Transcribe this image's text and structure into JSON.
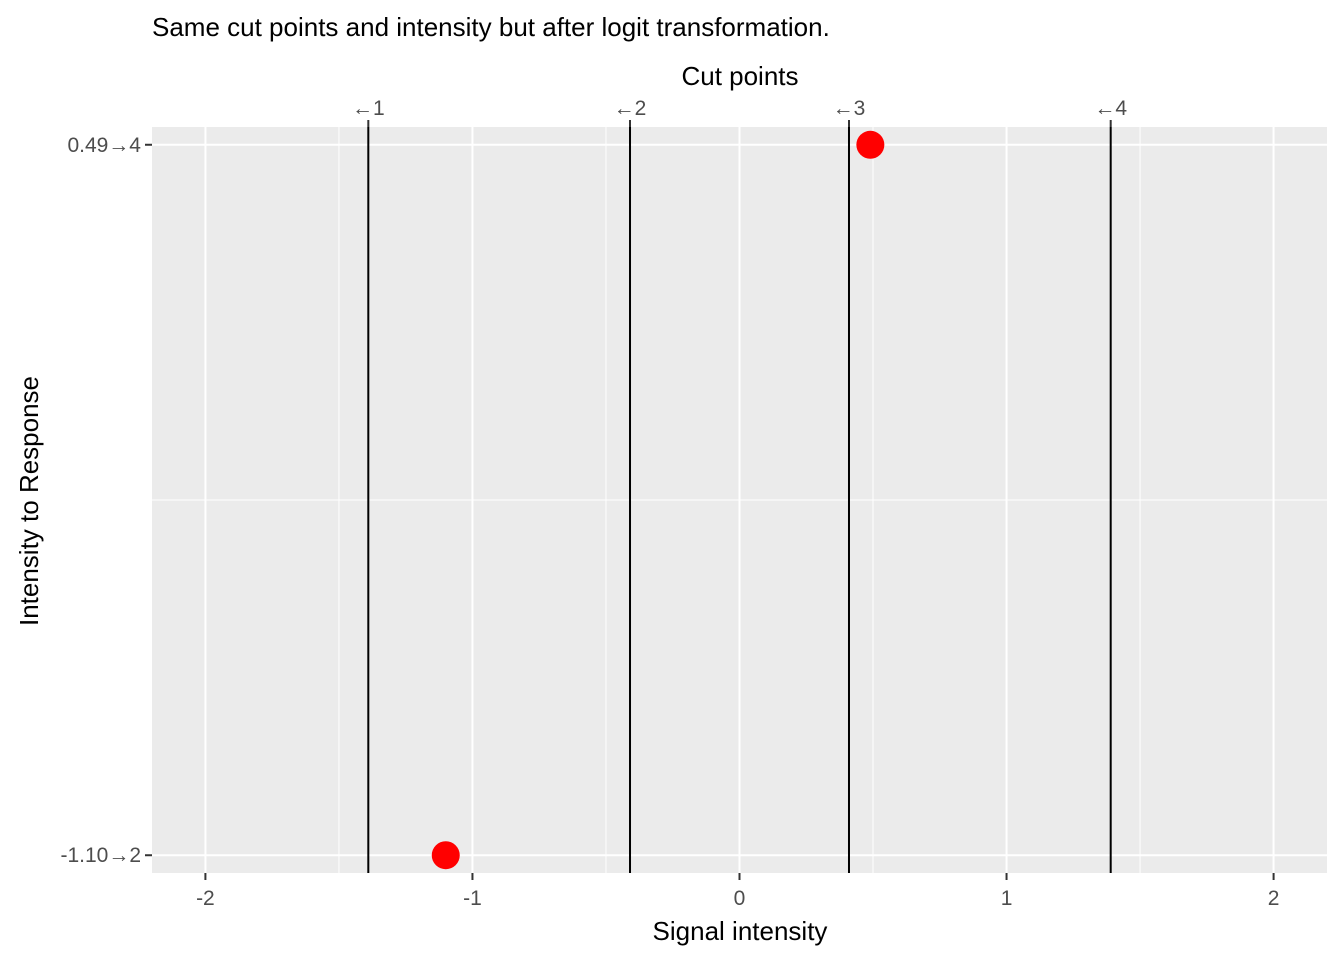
{
  "chart_data": {
    "type": "scatter",
    "title": "Same cut points and intensity but after logit transformation.",
    "xlabel": "Signal intensity",
    "ylabel": "Intensity to Response",
    "top_axis_label": "Cut points",
    "xlim": [
      -2.2,
      2.2
    ],
    "ylim": [
      1.95,
      4.05
    ],
    "x_ticks": [
      -2,
      -1,
      0,
      1,
      2
    ],
    "x_tick_labels": [
      "-2",
      "-1",
      "0",
      "1",
      "2"
    ],
    "x_minor_ticks": [
      -1.5,
      -0.5,
      0.5,
      1.5
    ],
    "y_ticks": [
      2,
      4
    ],
    "y_tick_labels": [
      "-1.10→2",
      "0.49→4"
    ],
    "y_minor_ticks": [
      3
    ],
    "grid": true,
    "cut_points": [
      {
        "x": -1.39,
        "label": "←1"
      },
      {
        "x": -0.41,
        "label": "←2"
      },
      {
        "x": 0.41,
        "label": "←3"
      },
      {
        "x": 1.39,
        "label": "←4"
      }
    ],
    "points": [
      {
        "x": -1.1,
        "y": 2
      },
      {
        "x": 0.49,
        "y": 4
      }
    ],
    "colors": {
      "panel": "#ebebeb",
      "grid": "#ffffff",
      "cut_line": "#000000",
      "point": "#ff0000",
      "tick": "#333333"
    }
  }
}
